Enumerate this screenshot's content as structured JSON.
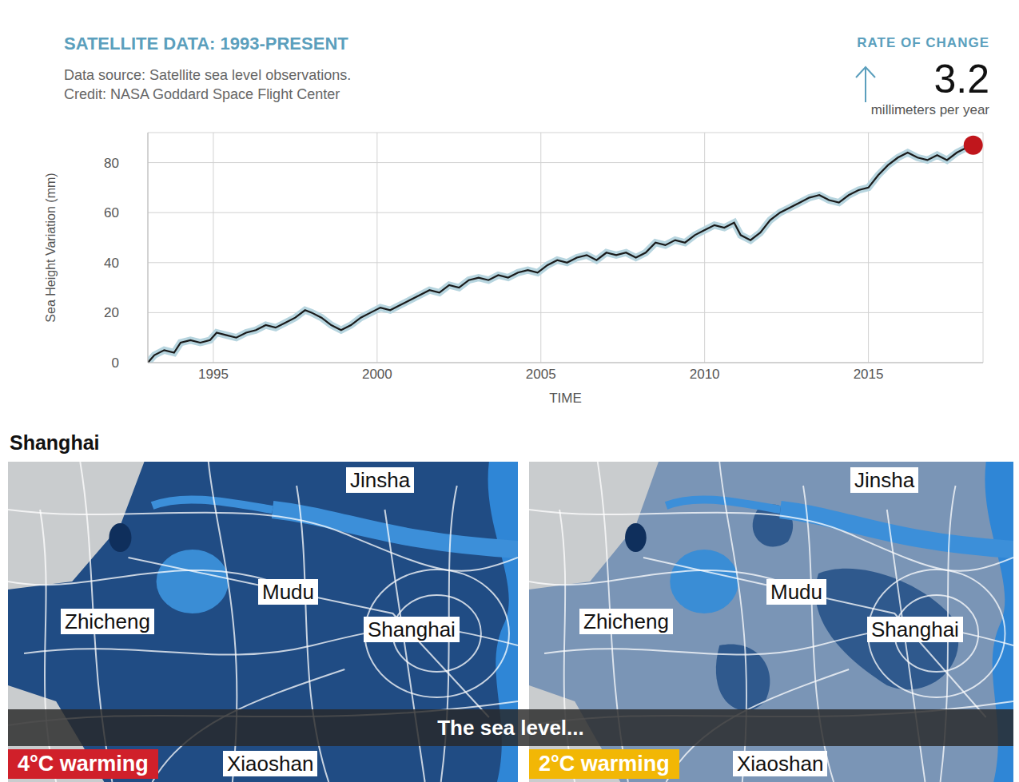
{
  "chart_data": {
    "type": "line",
    "title": "SATELLITE DATA: 1993-PRESENT",
    "subtitle": [
      "Data source: Satellite sea level observations.",
      "Credit: NASA Goddard Space Flight Center"
    ],
    "annotation": {
      "label": "RATE OF CHANGE",
      "value": 3.2,
      "unit": "millimeters per year"
    },
    "x_label": "TIME",
    "y_label": "Sea Height Variation (mm)",
    "x": [
      1993.0,
      1993.2,
      1993.5,
      1993.8,
      1994.0,
      1994.3,
      1994.6,
      1994.9,
      1995.1,
      1995.4,
      1995.7,
      1996.0,
      1996.3,
      1996.6,
      1996.9,
      1997.2,
      1997.5,
      1997.8,
      1998.0,
      1998.3,
      1998.6,
      1998.9,
      1999.2,
      1999.5,
      1999.8,
      2000.1,
      2000.4,
      2000.7,
      2001.0,
      2001.3,
      2001.6,
      2001.9,
      2002.2,
      2002.5,
      2002.8,
      2003.1,
      2003.4,
      2003.7,
      2004.0,
      2004.3,
      2004.6,
      2004.9,
      2005.2,
      2005.5,
      2005.8,
      2006.1,
      2006.4,
      2006.7,
      2007.0,
      2007.3,
      2007.6,
      2007.9,
      2008.2,
      2008.5,
      2008.8,
      2009.1,
      2009.4,
      2009.7,
      2010.0,
      2010.3,
      2010.6,
      2010.9,
      2011.1,
      2011.4,
      2011.7,
      2012.0,
      2012.3,
      2012.6,
      2012.9,
      2013.2,
      2013.5,
      2013.8,
      2014.1,
      2014.4,
      2014.7,
      2015.0,
      2015.3,
      2015.6,
      2015.9,
      2016.2,
      2016.5,
      2016.8,
      2017.1,
      2017.4,
      2017.7,
      2018.0,
      2018.2
    ],
    "values": [
      0,
      3,
      5,
      4,
      8,
      9,
      8,
      9,
      12,
      11,
      10,
      12,
      13,
      15,
      14,
      16,
      18,
      21,
      20,
      18,
      15,
      13,
      15,
      18,
      20,
      22,
      21,
      23,
      25,
      27,
      29,
      28,
      31,
      30,
      33,
      34,
      33,
      35,
      34,
      36,
      37,
      36,
      39,
      41,
      40,
      42,
      43,
      41,
      44,
      43,
      44,
      42,
      44,
      48,
      47,
      49,
      48,
      51,
      53,
      55,
      54,
      56,
      51,
      49,
      52,
      57,
      60,
      62,
      64,
      66,
      67,
      65,
      64,
      67,
      69,
      70,
      75,
      79,
      82,
      84,
      82,
      81,
      83,
      81,
      84,
      86,
      87
    ],
    "color": "#1a1a1a",
    "xlim": [
      1993,
      2018.5
    ],
    "ylim": [
      0,
      92
    ],
    "xticks": [
      1995,
      2000,
      2005,
      2010,
      2015
    ],
    "yticks": [
      0,
      20,
      40,
      60,
      80
    ],
    "grid": true
  },
  "maps": {
    "title": "Shanghai",
    "caption": "The sea level...",
    "panels": [
      {
        "label": "4°C warming",
        "places": [
          "Jinsha",
          "Mudu",
          "Zhicheng",
          "Shanghai",
          "Xiaoshan"
        ]
      },
      {
        "label": "2°C warming",
        "places": [
          "Jinsha",
          "Mudu",
          "Zhicheng",
          "Shanghai",
          "Xiaoshan"
        ]
      }
    ]
  }
}
